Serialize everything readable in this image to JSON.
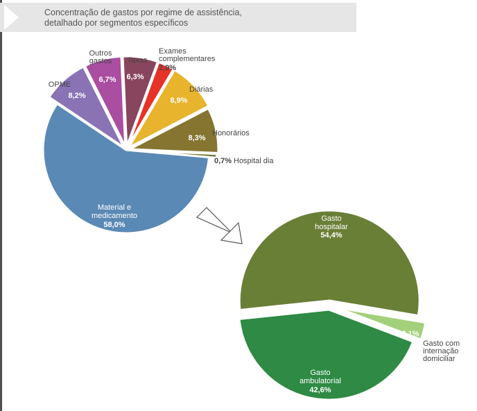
{
  "header": {
    "title": "Concentração de gastos por regime de assistência,\ndetalhado por segmentos específicos"
  },
  "chart_data": [
    {
      "type": "pie",
      "title": "",
      "slices": [
        {
          "label": "Material e\nmedicamento",
          "value": 58.0,
          "value_label": "58,0%",
          "color": "#5b89b5"
        },
        {
          "label": "OPME",
          "value": 8.2,
          "value_label": "8,2%",
          "color": "#8a73b5"
        },
        {
          "label": "Outros\ngastos",
          "value": 6.7,
          "value_label": "6,7%",
          "color": "#a94ea1"
        },
        {
          "label": "Taxas",
          "value": 6.3,
          "value_label": "6,3%",
          "color": "#88455d"
        },
        {
          "label": "Exames\ncomplementares",
          "value": 2.9,
          "value_label": "2,9%",
          "color": "#e63227"
        },
        {
          "label": "Diárias",
          "value": 8.9,
          "value_label": "8,9%",
          "color": "#e8b32d"
        },
        {
          "label": "Honorários",
          "value": 8.3,
          "value_label": "8,3%",
          "color": "#857530"
        },
        {
          "label": "Hospital dia",
          "value": 0.7,
          "value_label": "0,7%",
          "color": "#6a7a2c"
        }
      ]
    },
    {
      "type": "pie",
      "title": "",
      "slices": [
        {
          "label": "Gasto\nhospitalar",
          "value": 54.4,
          "value_label": "54,4%",
          "color": "#6a7f36"
        },
        {
          "label": "Gasto com\ninternação\ndomiciliar",
          "value": 3.1,
          "value_label": "3,1%",
          "color": "#a3d07a"
        },
        {
          "label": "Gasto\nambulatorial",
          "value": 42.6,
          "value_label": "42,6%",
          "color": "#2e8a44"
        }
      ]
    }
  ]
}
